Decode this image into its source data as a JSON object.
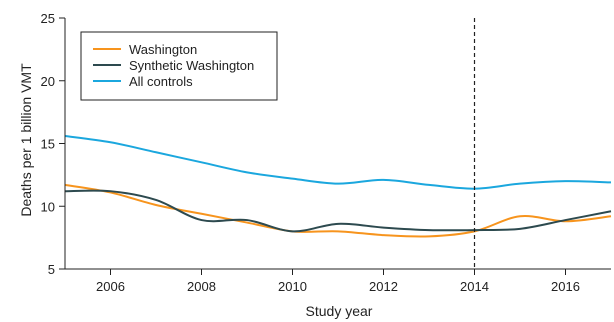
{
  "chart_data": {
    "type": "line",
    "xlabel": "Study year",
    "ylabel": "Deaths per 1 billion VMT",
    "xlim": [
      2005,
      2017
    ],
    "ylim": [
      5,
      25
    ],
    "xticks": [
      2006,
      2008,
      2010,
      2012,
      2014,
      2016
    ],
    "yticks": [
      5,
      10,
      15,
      20,
      25
    ],
    "grid": false,
    "legend_position": "top-left",
    "reference_line_x": 2014,
    "reference_line_style": "dashed",
    "x": [
      2005,
      2006,
      2007,
      2008,
      2009,
      2010,
      2011,
      2012,
      2013,
      2014,
      2015,
      2016,
      2017
    ],
    "series": [
      {
        "name": "Washington",
        "color": "#f7941d",
        "values": [
          11.7,
          11.1,
          10.1,
          9.4,
          8.7,
          8.0,
          8.0,
          7.7,
          7.6,
          8.0,
          9.2,
          8.8,
          9.2
        ]
      },
      {
        "name": "Synthetic Washington",
        "color": "#2d4a4f",
        "values": [
          11.2,
          11.2,
          10.5,
          8.9,
          8.9,
          8.0,
          8.6,
          8.3,
          8.1,
          8.1,
          8.2,
          8.9,
          9.6
        ]
      },
      {
        "name": "All controls",
        "color": "#1ba7de",
        "values": [
          15.6,
          15.1,
          14.3,
          13.5,
          12.7,
          12.2,
          11.8,
          12.1,
          11.7,
          11.4,
          11.8,
          12.0,
          11.9
        ]
      }
    ]
  }
}
